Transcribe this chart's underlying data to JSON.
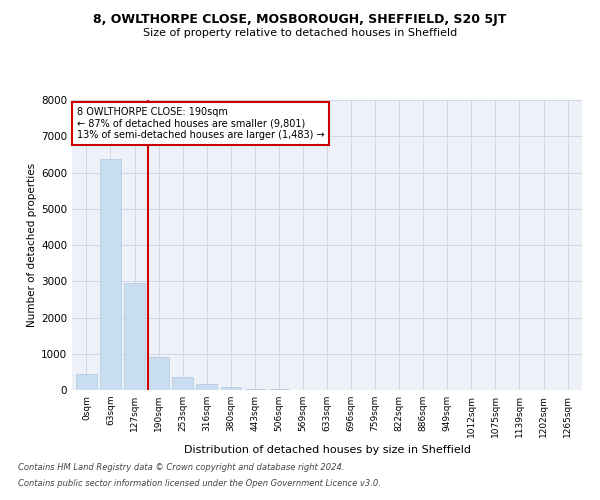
{
  "title": "8, OWLTHORPE CLOSE, MOSBOROUGH, SHEFFIELD, S20 5JT",
  "subtitle": "Size of property relative to detached houses in Sheffield",
  "xlabel": "Distribution of detached houses by size in Sheffield",
  "ylabel": "Number of detached properties",
  "footnote1": "Contains HM Land Registry data © Crown copyright and database right 2024.",
  "footnote2": "Contains public sector information licensed under the Open Government Licence v3.0.",
  "annotation_line1": "8 OWLTHORPE CLOSE: 190sqm",
  "annotation_line2": "← 87% of detached houses are smaller (9,801)",
  "annotation_line3": "13% of semi-detached houses are larger (1,483) →",
  "bar_categories": [
    "0sqm",
    "63sqm",
    "127sqm",
    "190sqm",
    "253sqm",
    "316sqm",
    "380sqm",
    "443sqm",
    "506sqm",
    "569sqm",
    "633sqm",
    "696sqm",
    "759sqm",
    "822sqm",
    "886sqm",
    "949sqm",
    "1012sqm",
    "1075sqm",
    "1139sqm",
    "1202sqm",
    "1265sqm"
  ],
  "bar_values": [
    430,
    6380,
    2940,
    920,
    370,
    160,
    80,
    40,
    20,
    5,
    3,
    2,
    1,
    1,
    0,
    0,
    0,
    0,
    0,
    0,
    0
  ],
  "bar_color": "#c9ddf0",
  "bar_edge_color": "#aec8e0",
  "vline_color": "#cc0000",
  "vline_index": 3,
  "annotation_box_color": "#cc0000",
  "grid_color": "#d0d8e8",
  "background_color": "#eef2f8",
  "ylim": [
    0,
    8000
  ],
  "yticks": [
    0,
    1000,
    2000,
    3000,
    4000,
    5000,
    6000,
    7000,
    8000
  ]
}
